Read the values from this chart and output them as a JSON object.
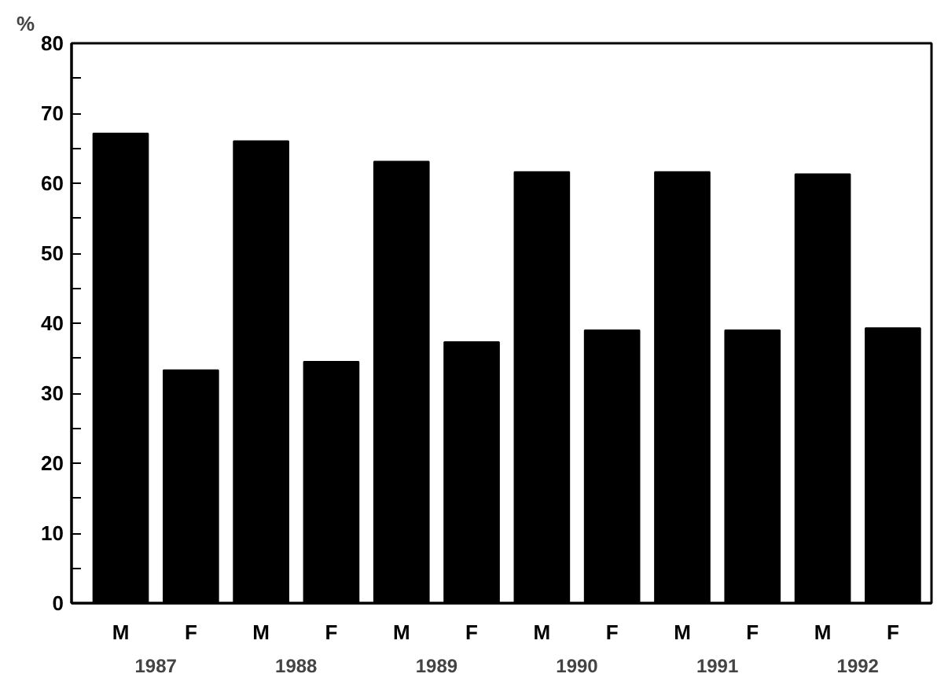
{
  "chart_data": {
    "type": "bar",
    "ylabel": "%",
    "categories": [
      "M",
      "F",
      "M",
      "F",
      "M",
      "F",
      "M",
      "F",
      "M",
      "F",
      "M",
      "F"
    ],
    "values": [
      67.1,
      33.3,
      66.0,
      34.5,
      63.1,
      37.3,
      61.6,
      39.0,
      61.6,
      39.0,
      61.3,
      39.3
    ],
    "color": "#000000",
    "annotations": [
      "1987",
      "1988",
      "1989",
      "1990",
      "1991",
      "1992"
    ],
    "ylim": [
      0,
      80
    ],
    "yticks": [
      0,
      {
        "value": 5,
        "label": null
      },
      10,
      {
        "value": 15,
        "label": null
      },
      20,
      {
        "value": 25,
        "label": null
      },
      30,
      {
        "value": 35,
        "label": null
      },
      40,
      {
        "value": 45,
        "label": null
      },
      50,
      {
        "value": 55,
        "label": null
      },
      60,
      {
        "value": 65,
        "label": null
      },
      70,
      {
        "value": 75,
        "label": null
      },
      80
    ],
    "grid": false
  }
}
